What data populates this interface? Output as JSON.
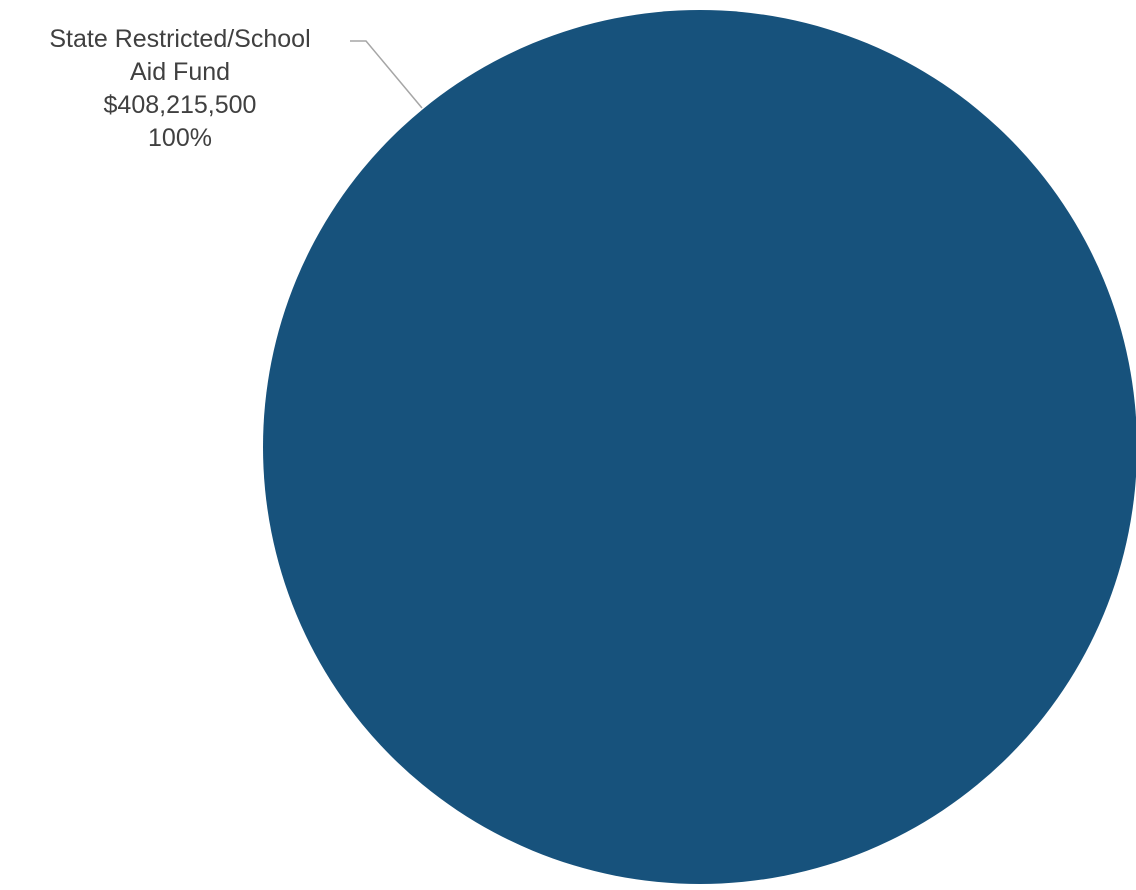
{
  "chart_data": {
    "type": "pie",
    "title": "",
    "slices": [
      {
        "label": "State Restricted/School Aid Fund",
        "label_lines": [
          "State Restricted/School",
          "Aid Fund"
        ],
        "value": 408215500,
        "value_label": "$408,215,500",
        "percent": 100,
        "percent_label": "100%",
        "color": "#17527c"
      }
    ],
    "legend": "none",
    "data_labels": "outside-with-leader-line"
  }
}
